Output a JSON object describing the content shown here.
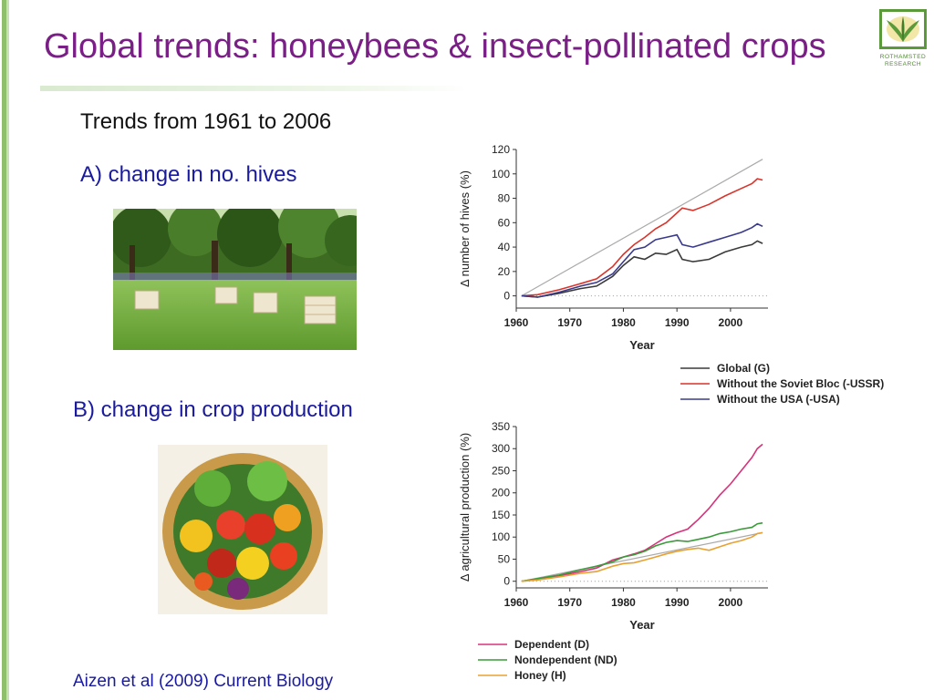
{
  "slide": {
    "title": "Global trends: honeybees & insect-pollinated crops",
    "subtitle": "Trends from 1961 to 2006",
    "label_a": "A)  change in no. hives",
    "label_b": "B) change in crop production",
    "citation": "Aizen et al (2009) Current Biology",
    "logo_text_line1": "ROTHAMSTED",
    "logo_text_line2": "RESEARCH",
    "logo_icon": "rothamsted-leaf-logo",
    "photo_a_icon": "beehives-in-meadow-photo",
    "photo_b_icon": "vegetable-basket-photo",
    "colors": {
      "title": "#7a1f86",
      "label": "#1a1aa0",
      "accent": "#8fbf6a"
    }
  },
  "chart_data": [
    {
      "type": "line",
      "title": "",
      "xlabel": "Year",
      "ylabel": "Δ number of hives (%)",
      "xlim": [
        1960,
        2007
      ],
      "ylim": [
        -10,
        120
      ],
      "xticks": [
        1960,
        1970,
        1980,
        1990,
        2000
      ],
      "yticks": [
        0,
        20,
        40,
        60,
        80,
        100,
        120
      ],
      "legend_position": "bottom-right",
      "reference": {
        "x": [
          1961,
          2006
        ],
        "y": [
          0,
          112
        ],
        "color": "#aaaaaa"
      },
      "series": [
        {
          "name": "Global (G)",
          "color": "#3a3a3a",
          "x": [
            1961,
            1964,
            1968,
            1972,
            1975,
            1978,
            1980,
            1982,
            1984,
            1986,
            1988,
            1990,
            1991,
            1993,
            1996,
            1999,
            2002,
            2004,
            2005,
            2006
          ],
          "y": [
            0,
            -1,
            2,
            6,
            8,
            16,
            25,
            32,
            30,
            35,
            34,
            38,
            30,
            28,
            30,
            36,
            40,
            42,
            45,
            43
          ]
        },
        {
          "name": "Without the Soviet Bloc (-USSR)",
          "color": "#d9342b",
          "x": [
            1961,
            1964,
            1968,
            1972,
            1975,
            1978,
            1980,
            1982,
            1984,
            1986,
            1988,
            1990,
            1991,
            1993,
            1996,
            1999,
            2002,
            2004,
            2005,
            2006
          ],
          "y": [
            0,
            1,
            5,
            10,
            14,
            24,
            34,
            42,
            48,
            55,
            60,
            68,
            72,
            70,
            75,
            82,
            88,
            92,
            96,
            95
          ]
        },
        {
          "name": "Without the USA (-USA)",
          "color": "#3a3a8c",
          "x": [
            1961,
            1964,
            1968,
            1972,
            1975,
            1978,
            1980,
            1982,
            1984,
            1986,
            1988,
            1990,
            1991,
            1993,
            1996,
            1999,
            2002,
            2004,
            2005,
            2006
          ],
          "y": [
            0,
            -1,
            3,
            8,
            11,
            18,
            28,
            38,
            40,
            46,
            48,
            50,
            42,
            40,
            44,
            48,
            52,
            56,
            59,
            57
          ]
        }
      ]
    },
    {
      "type": "line",
      "title": "",
      "xlabel": "Year",
      "ylabel": "Δ agricultural production (%)",
      "xlim": [
        1960,
        2007
      ],
      "ylim": [
        -15,
        350
      ],
      "xticks": [
        1960,
        1970,
        1980,
        1990,
        2000
      ],
      "yticks": [
        0,
        50,
        100,
        150,
        200,
        250,
        300,
        350
      ],
      "legend_position": "bottom-left",
      "reference": {
        "x": [
          1961,
          2006
        ],
        "y": [
          0,
          110
        ],
        "color": "#aaaaaa"
      },
      "series": [
        {
          "name": "Dependent (D)",
          "color": "#d6337a",
          "x": [
            1961,
            1964,
            1968,
            1972,
            1975,
            1978,
            1980,
            1982,
            1984,
            1986,
            1988,
            1990,
            1992,
            1994,
            1996,
            1998,
            2000,
            2002,
            2004,
            2005,
            2006
          ],
          "y": [
            0,
            5,
            12,
            22,
            30,
            48,
            55,
            62,
            70,
            85,
            100,
            110,
            118,
            140,
            165,
            195,
            220,
            250,
            280,
            300,
            310
          ]
        },
        {
          "name": "Nondependent (ND)",
          "color": "#3a9a3a",
          "x": [
            1961,
            1964,
            1968,
            1972,
            1975,
            1978,
            1980,
            1982,
            1984,
            1986,
            1988,
            1990,
            1992,
            1994,
            1996,
            1998,
            2000,
            2002,
            2004,
            2005,
            2006
          ],
          "y": [
            0,
            6,
            14,
            26,
            34,
            44,
            55,
            60,
            68,
            80,
            88,
            92,
            90,
            95,
            100,
            108,
            112,
            118,
            122,
            130,
            132
          ]
        },
        {
          "name": "Honey (H)",
          "color": "#e8a030",
          "x": [
            1961,
            1964,
            1968,
            1972,
            1975,
            1978,
            1980,
            1982,
            1984,
            1986,
            1988,
            1990,
            1992,
            1994,
            1996,
            1998,
            2000,
            2002,
            2004,
            2005,
            2006
          ],
          "y": [
            0,
            3,
            10,
            18,
            22,
            34,
            40,
            42,
            48,
            55,
            62,
            68,
            72,
            75,
            70,
            78,
            86,
            92,
            100,
            108,
            110
          ]
        }
      ]
    }
  ]
}
